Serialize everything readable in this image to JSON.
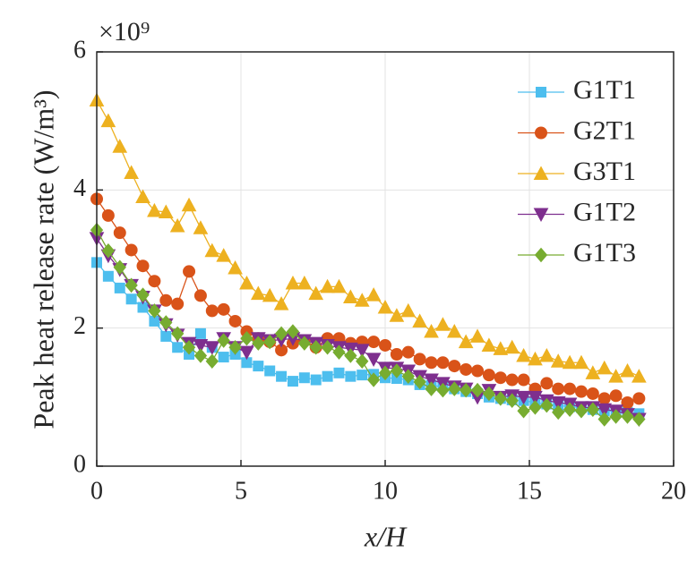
{
  "chart_data": {
    "type": "line",
    "xlabel": "x/H",
    "ylabel": "Peak heat release rate (W/m³)",
    "y_scale_label": "×10⁹",
    "x": [
      0,
      0.4,
      0.8,
      1.2,
      1.6,
      2,
      2.4,
      2.8,
      3.2,
      3.6,
      4,
      4.4,
      4.8,
      5.2,
      5.6,
      6,
      6.4,
      6.8,
      7.2,
      7.6,
      8,
      8.4,
      8.8,
      9.2,
      9.6,
      10,
      10.4,
      10.8,
      11.2,
      11.6,
      12,
      12.4,
      12.8,
      13.2,
      13.6,
      14,
      14.4,
      14.8,
      15.2,
      15.6,
      16,
      16.4,
      16.8,
      17.2,
      17.6,
      18,
      18.4,
      18.8
    ],
    "series": [
      {
        "name": "G1T1",
        "color": "#4dbeee",
        "marker": "square",
        "values": [
          2.95,
          2.75,
          2.58,
          2.42,
          2.3,
          2.1,
          1.88,
          1.72,
          1.62,
          1.92,
          1.72,
          1.58,
          1.62,
          1.5,
          1.45,
          1.38,
          1.3,
          1.23,
          1.28,
          1.25,
          1.3,
          1.35,
          1.3,
          1.32,
          1.33,
          1.28,
          1.27,
          1.25,
          1.18,
          1.17,
          1.15,
          1.12,
          1.08,
          1.05,
          1.0,
          0.98,
          0.96,
          0.95,
          0.92,
          0.9,
          0.88,
          0.86,
          0.85,
          0.82,
          0.8,
          0.8,
          0.78,
          0.76
        ]
      },
      {
        "name": "G2T1",
        "color": "#d95319",
        "marker": "circle",
        "values": [
          3.87,
          3.63,
          3.38,
          3.13,
          2.9,
          2.68,
          2.4,
          2.35,
          2.82,
          2.47,
          2.25,
          2.27,
          2.1,
          1.95,
          1.85,
          1.8,
          1.68,
          1.78,
          1.82,
          1.72,
          1.85,
          1.85,
          1.78,
          1.8,
          1.8,
          1.75,
          1.62,
          1.65,
          1.55,
          1.5,
          1.5,
          1.45,
          1.4,
          1.38,
          1.32,
          1.28,
          1.25,
          1.25,
          1.12,
          1.2,
          1.12,
          1.12,
          1.08,
          1.05,
          0.98,
          1.02,
          0.92,
          0.98
        ]
      },
      {
        "name": "G3T1",
        "color": "#edb120",
        "marker": "triangle-up",
        "values": [
          5.3,
          5.0,
          4.63,
          4.25,
          3.9,
          3.7,
          3.68,
          3.48,
          3.78,
          3.45,
          3.12,
          3.05,
          2.87,
          2.65,
          2.5,
          2.47,
          2.35,
          2.65,
          2.65,
          2.5,
          2.6,
          2.6,
          2.45,
          2.4,
          2.48,
          2.3,
          2.18,
          2.25,
          2.1,
          1.95,
          2.05,
          1.95,
          1.8,
          1.88,
          1.75,
          1.7,
          1.72,
          1.6,
          1.55,
          1.6,
          1.52,
          1.5,
          1.5,
          1.35,
          1.42,
          1.3,
          1.38,
          1.3
        ]
      },
      {
        "name": "G1T2",
        "color": "#7e2f8e",
        "marker": "triangle-down",
        "values": [
          3.3,
          3.05,
          2.85,
          2.62,
          2.45,
          2.25,
          2.05,
          1.9,
          1.78,
          1.75,
          1.72,
          1.85,
          1.72,
          1.65,
          1.85,
          1.82,
          1.83,
          1.85,
          1.82,
          1.78,
          1.75,
          1.72,
          1.7,
          1.68,
          1.55,
          1.42,
          1.42,
          1.38,
          1.3,
          1.25,
          1.2,
          1.15,
          1.12,
          1.0,
          1.1,
          1.0,
          1.02,
          1.0,
          1.0,
          0.95,
          0.92,
          0.9,
          0.85,
          0.85,
          0.82,
          0.8,
          0.75,
          0.68
        ]
      },
      {
        "name": "G1T3",
        "color": "#77ac30",
        "marker": "diamond",
        "values": [
          3.42,
          3.12,
          2.88,
          2.62,
          2.48,
          2.25,
          2.08,
          1.92,
          1.72,
          1.6,
          1.52,
          1.82,
          1.72,
          1.85,
          1.78,
          1.8,
          1.92,
          1.95,
          1.78,
          1.72,
          1.72,
          1.65,
          1.6,
          1.52,
          1.25,
          1.35,
          1.38,
          1.3,
          1.22,
          1.12,
          1.1,
          1.12,
          1.1,
          1.1,
          1.05,
          0.98,
          0.95,
          0.8,
          0.85,
          0.88,
          0.78,
          0.82,
          0.8,
          0.82,
          0.68,
          0.72,
          0.72,
          0.68
        ]
      }
    ],
    "xlim": [
      0,
      20
    ],
    "xticks": [
      0,
      5,
      10,
      15,
      20
    ],
    "ylim": [
      0,
      6
    ],
    "yticks": [
      0,
      2,
      4,
      6
    ],
    "grid": true,
    "legend": "upper-right"
  }
}
